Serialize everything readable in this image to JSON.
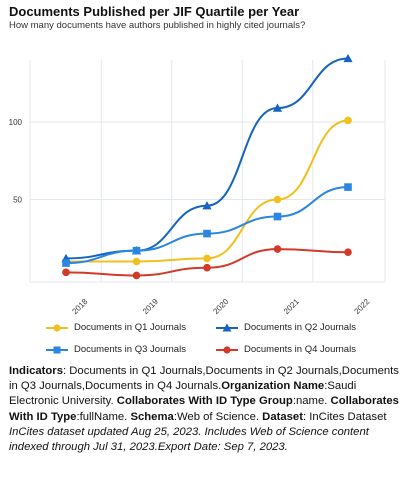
{
  "header": {
    "title": "Documents Published per JIF Quartile per Year",
    "subtitle": "How many documents have authors published in highly cited journals?"
  },
  "chart_data": {
    "type": "line",
    "x": [
      "2018",
      "2019",
      "2020",
      "2021",
      "2022"
    ],
    "ylim": [
      0,
      140
    ],
    "yticks": [
      50,
      100
    ],
    "grid": true,
    "legend_position": "bottom",
    "series": [
      {
        "name": "Documents in Q1 Journals",
        "values": [
          10,
          10,
          12,
          50,
          101
        ],
        "color": "#f2c01e",
        "marker": "circle"
      },
      {
        "name": "Documents in Q2 Journals",
        "values": [
          12,
          17,
          46,
          109,
          141
        ],
        "color": "#1565c0",
        "marker": "triangle"
      },
      {
        "name": "Documents in Q3 Journals",
        "values": [
          9,
          17,
          28,
          39,
          58
        ],
        "color": "#2a86e0",
        "marker": "square"
      },
      {
        "name": "Documents in Q4 Journals",
        "values": [
          3,
          1,
          6,
          18,
          16
        ],
        "color": "#d23a2a",
        "marker": "circle"
      }
    ]
  },
  "description": {
    "indicators_label": "Indicators",
    "indicators_value": ": Documents in Q1 Journals,Documents in Q2 Journals,Documents in Q3 Journals,Documents in Q4 Journals.",
    "org_label": "Organization Name",
    "org_value": ":Saudi Electronic University. ",
    "collab_group_label": "Collaborates With ID Type Group",
    "collab_group_value": ":name. ",
    "collab_type_label": "Collaborates With ID Type",
    "collab_type_value": ":fullName. ",
    "schema_label": "Schema",
    "schema_value": ":Web of Science. ",
    "dataset_label": "Dataset",
    "dataset_value": ": InCites Dataset",
    "note": "InCites dataset updated Aug 25, 2023. Includes Web of Science content indexed through Jul 31, 2023.Export Date: Sep 7, 2023."
  }
}
